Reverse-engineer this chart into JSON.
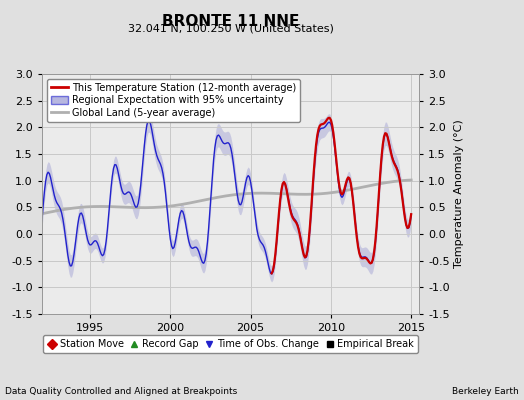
{
  "title": "BRONTE 11 NNE",
  "subtitle": "32.041 N, 100.250 W (United States)",
  "xlabel_left": "Data Quality Controlled and Aligned at Breakpoints",
  "xlabel_right": "Berkeley Earth",
  "ylabel": "Temperature Anomaly (°C)",
  "xlim": [
    1992.0,
    2015.5
  ],
  "ylim": [
    -1.5,
    3.0
  ],
  "yticks": [
    -1.5,
    -1.0,
    -0.5,
    0.0,
    0.5,
    1.0,
    1.5,
    2.0,
    2.5,
    3.0
  ],
  "xticks": [
    1995,
    2000,
    2005,
    2010,
    2015
  ],
  "bg_color": "#e0e0e0",
  "plot_bg_color": "#ebebeb",
  "legend_items": [
    {
      "label": "This Temperature Station (12-month average)",
      "color": "#cc0000",
      "lw": 2.0
    },
    {
      "label": "Regional Expectation with 95% uncertainty",
      "color": "#2222cc",
      "lw": 1.5
    },
    {
      "label": "Global Land (5-year average)",
      "color": "#b0b0b0",
      "lw": 2.0
    }
  ],
  "legend_markers": [
    {
      "label": "Station Move",
      "color": "#cc0000",
      "marker": "D"
    },
    {
      "label": "Record Gap",
      "color": "#228B22",
      "marker": "^"
    },
    {
      "label": "Time of Obs. Change",
      "color": "#2222cc",
      "marker": "v"
    },
    {
      "label": "Empirical Break",
      "color": "#000000",
      "marker": "s"
    }
  ],
  "grid_color": "#c8c8c8",
  "shading_color": "#8888cc",
  "shading_alpha": 0.35,
  "red_line_color": "#cc0000",
  "blue_line_color": "#2222cc",
  "gray_line_color": "#b0b0b0"
}
